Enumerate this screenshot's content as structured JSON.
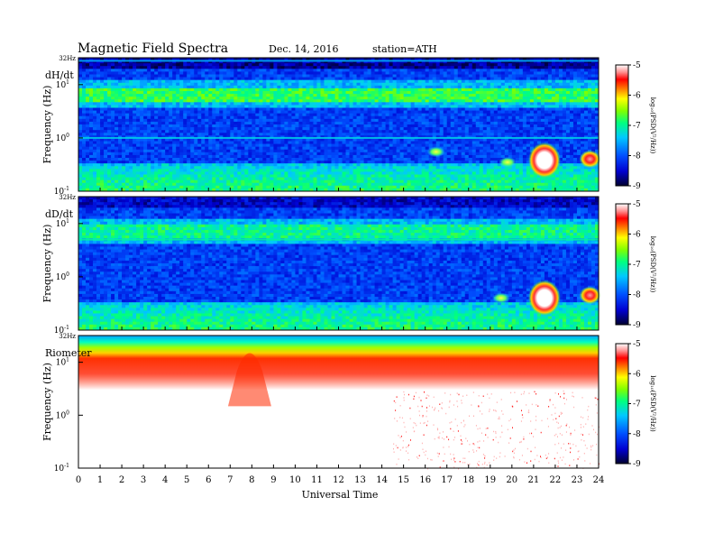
{
  "header": {
    "title": "Magnetic  Field  Spectra",
    "date": "Dec. 14, 2016",
    "station": "station=ATH"
  },
  "chart_data": [
    {
      "type": "heatmap",
      "panel_label": "dH/dt",
      "ylabel": "Frequency  (Hz)",
      "y_scale": "log",
      "ylim": [
        0.1,
        32
      ],
      "y_ticks": [
        {
          "value": 32,
          "label": "32Hz"
        },
        {
          "value": 10,
          "label": "10",
          "exp": "1"
        },
        {
          "value": 1,
          "label": "10",
          "exp": "0"
        },
        {
          "value": 0.1,
          "label": "10",
          "exp": "-1"
        }
      ],
      "xlim": [
        0,
        24
      ],
      "colorbar": {
        "range": [
          -9,
          -5
        ],
        "ticks": [
          "-5",
          "-6",
          "-7",
          "-8",
          "-9"
        ],
        "label": "log₁₀(PSD(V²/Hz))"
      },
      "features": [
        {
          "type": "band",
          "freq_hz": 6.5,
          "intensity": -7.0
        },
        {
          "type": "line",
          "freq_hz": 1.0,
          "intensity": -7.3
        },
        {
          "type": "line",
          "freq_hz": 28,
          "intensity": -7.5
        },
        {
          "type": "blob",
          "time_h": 21.5,
          "freq_hz": 0.38,
          "intensity": -5.0
        },
        {
          "type": "blob",
          "time_h": 23.6,
          "freq_hz": 0.4,
          "intensity": -6.2
        },
        {
          "type": "blob",
          "time_h": 16.5,
          "freq_hz": 0.55,
          "intensity": -7.0
        },
        {
          "type": "blob",
          "time_h": 19.8,
          "freq_hz": 0.35,
          "intensity": -6.8
        }
      ]
    },
    {
      "type": "heatmap",
      "panel_label": "dD/dt",
      "ylabel": "Frequency  (Hz)",
      "y_scale": "log",
      "ylim": [
        0.1,
        32
      ],
      "y_ticks": [
        {
          "value": 32,
          "label": "32Hz"
        },
        {
          "value": 10,
          "label": "10",
          "exp": "1"
        },
        {
          "value": 1,
          "label": "10",
          "exp": "0"
        },
        {
          "value": 0.1,
          "label": "10",
          "exp": "-1"
        }
      ],
      "xlim": [
        0,
        24
      ],
      "colorbar": {
        "range": [
          -9,
          -5
        ],
        "ticks": [
          "-5",
          "-6",
          "-7",
          "-8",
          "-9"
        ],
        "label": "log₁₀(PSD(V²/Hz))"
      },
      "features": [
        {
          "type": "band",
          "freq_hz": 7.0,
          "intensity": -7.2
        },
        {
          "type": "line",
          "freq_hz": 5.0,
          "intensity": -7.0
        },
        {
          "type": "blob",
          "time_h": 21.5,
          "freq_hz": 0.4,
          "intensity": -5.0
        },
        {
          "type": "blob",
          "time_h": 23.6,
          "freq_hz": 0.45,
          "intensity": -6.3
        },
        {
          "type": "blob",
          "time_h": 19.5,
          "freq_hz": 0.4,
          "intensity": -6.8
        }
      ]
    },
    {
      "type": "heatmap",
      "panel_label": "Riometer",
      "ylabel": "Frequency  (Hz)",
      "y_scale": "log",
      "ylim": [
        0.1,
        32
      ],
      "y_ticks": [
        {
          "value": 32,
          "label": "32Hz"
        },
        {
          "value": 10,
          "label": "10",
          "exp": "1"
        },
        {
          "value": 1,
          "label": "10",
          "exp": "0"
        },
        {
          "value": 0.1,
          "label": "10",
          "exp": "-1"
        }
      ],
      "xlim": [
        0,
        24
      ],
      "xlabel": "Universal  Time",
      "x_ticks": [
        "0",
        "1",
        "2",
        "3",
        "4",
        "5",
        "6",
        "7",
        "8",
        "9",
        "10",
        "11",
        "12",
        "13",
        "14",
        "15",
        "16",
        "17",
        "18",
        "19",
        "20",
        "21",
        "22",
        "23",
        "24"
      ],
      "colorbar": {
        "range": [
          -9,
          -5
        ],
        "ticks": [
          "-5",
          "-6",
          "-7",
          "-8",
          "-9"
        ],
        "label": "log₁₀(PSD(V²/Hz))"
      },
      "features": [
        {
          "type": "gradient",
          "freq_top_hz": 32,
          "freq_bottom_hz": 3.0
        },
        {
          "type": "spike",
          "time_h": 7.9,
          "freq_hz": 12
        },
        {
          "type": "step",
          "time_h": 14.5
        }
      ]
    }
  ]
}
